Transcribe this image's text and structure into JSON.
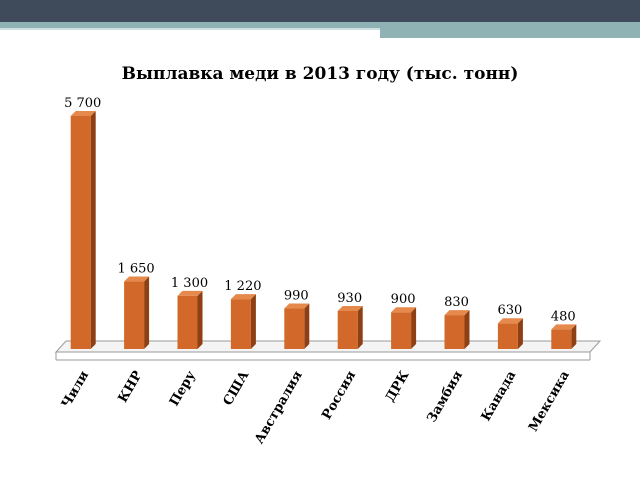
{
  "chart_data": {
    "type": "bar",
    "title": "Выплавка меди в 2013 году (тыс. тонн)",
    "categories": [
      "Чили",
      "КНР",
      "Перу",
      "США",
      "Австралия",
      "Россия",
      "ДРК",
      "Замбия",
      "Канада",
      "Мексика"
    ],
    "values": [
      5700,
      1650,
      1300,
      1220,
      990,
      930,
      900,
      830,
      630,
      480
    ],
    "value_labels": [
      "5 700",
      "1 650",
      "1 300",
      "1 220",
      "990",
      "930",
      "900",
      "830",
      "630",
      "480"
    ],
    "xlabel": "",
    "ylabel": "",
    "ylim": [
      0,
      5700
    ],
    "grid": false,
    "legend": "none",
    "bar_color": "#d2692a",
    "bar_side_color": "#8f3f14",
    "bar_top_color": "#e58a4c"
  }
}
